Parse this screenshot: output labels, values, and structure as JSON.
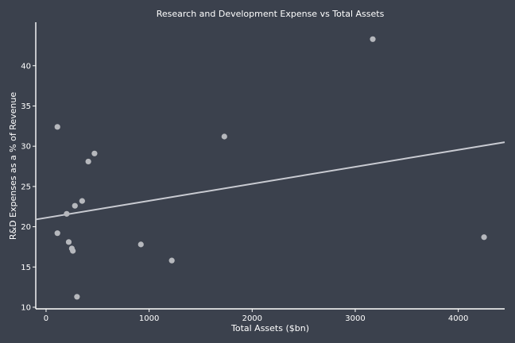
{
  "chart_data": {
    "type": "scatter",
    "title": "Research and Development Expense vs Total Assets",
    "xlabel": "Total Assets ($bn)",
    "ylabel": "R&D Expenses as a % of Revenue",
    "xlim": [
      -100,
      4450
    ],
    "ylim": [
      9.8,
      45.4
    ],
    "xticks": [
      0,
      1000,
      2000,
      3000,
      4000
    ],
    "yticks": [
      10,
      15,
      20,
      25,
      30,
      35,
      40
    ],
    "grid": false,
    "points": [
      {
        "x": 110,
        "y": 32.4
      },
      {
        "x": 110,
        "y": 19.2
      },
      {
        "x": 200,
        "y": 21.6
      },
      {
        "x": 220,
        "y": 18.1
      },
      {
        "x": 250,
        "y": 17.3
      },
      {
        "x": 260,
        "y": 17.0
      },
      {
        "x": 280,
        "y": 22.6
      },
      {
        "x": 300,
        "y": 11.3
      },
      {
        "x": 350,
        "y": 23.2
      },
      {
        "x": 410,
        "y": 28.1
      },
      {
        "x": 470,
        "y": 29.1
      },
      {
        "x": 920,
        "y": 17.8
      },
      {
        "x": 1220,
        "y": 15.8
      },
      {
        "x": 1730,
        "y": 31.2
      },
      {
        "x": 3170,
        "y": 43.3
      },
      {
        "x": 4250,
        "y": 18.7
      }
    ],
    "trendline": {
      "x": [
        -100,
        4450
      ],
      "y": [
        20.9,
        30.5
      ]
    },
    "colors": {
      "background": "#3b414d",
      "points": "#b6b8bd",
      "trendline": "#c9cbd2",
      "axes": "#ffffff",
      "text": "#ffffff"
    }
  }
}
